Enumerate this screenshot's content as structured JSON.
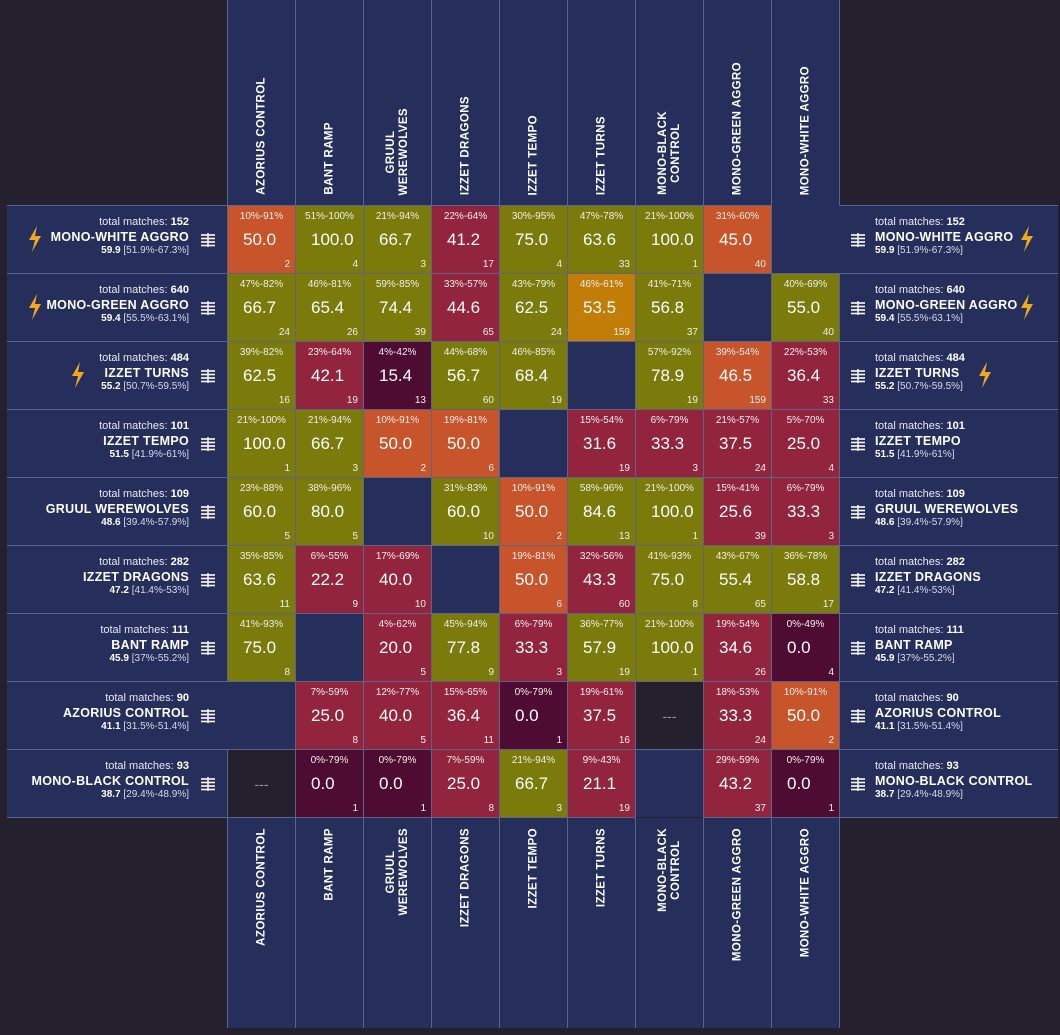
{
  "columns": [
    "AZORIUS CONTROL",
    "BANT RAMP",
    "GRUUL\nWEREWOLVES",
    "IZZET DRAGONS",
    "IZZET TEMPO",
    "IZZET TURNS",
    "MONO-BLACK\nCONTROL",
    "MONO-GREEN AGGRO",
    "MONO-WHITE AGGRO"
  ],
  "colors": {
    "olive": "#7a7b0b",
    "red": "#92253d",
    "orange": "#c7542b",
    "amber": "#c17d06",
    "darkred": "#4f0c33",
    "empty": "#262f5c",
    "na": "#24202e",
    "bolt": "#f0a81c"
  },
  "total_label": "total matches:",
  "rows": [
    {
      "name": "MONO-WHITE AGGRO",
      "total": "152",
      "winrate": "59.9",
      "ci": "[51.9%-67.3%]",
      "bolt": true
    },
    {
      "name": "MONO-GREEN AGGRO",
      "total": "640",
      "winrate": "59.4",
      "ci": "[55.5%-63.1%]",
      "bolt": true
    },
    {
      "name": "IZZET TURNS",
      "total": "484",
      "winrate": "55.2",
      "ci": "[50.7%-59.5%]",
      "bolt": true
    },
    {
      "name": "IZZET TEMPO",
      "total": "101",
      "winrate": "51.5",
      "ci": "[41.9%-61%]",
      "bolt": false
    },
    {
      "name": "GRUUL WEREWOLVES",
      "total": "109",
      "winrate": "48.6",
      "ci": "[39.4%-57.9%]",
      "bolt": false
    },
    {
      "name": "IZZET DRAGONS",
      "total": "282",
      "winrate": "47.2",
      "ci": "[41.4%-53%]",
      "bolt": false
    },
    {
      "name": "BANT RAMP",
      "total": "111",
      "winrate": "45.9",
      "ci": "[37%-55.2%]",
      "bolt": false
    },
    {
      "name": "AZORIUS CONTROL",
      "total": "90",
      "winrate": "41.1",
      "ci": "[31.5%-51.4%]",
      "bolt": false
    },
    {
      "name": "MONO-BLACK CONTROL",
      "total": "93",
      "winrate": "38.7",
      "ci": "[29.4%-48.9%]",
      "bolt": false
    }
  ],
  "chart_data": {
    "type": "heatmap",
    "rows": [
      "MONO-WHITE AGGRO",
      "MONO-GREEN AGGRO",
      "IZZET TURNS",
      "IZZET TEMPO",
      "GRUUL WEREWOLVES",
      "IZZET DRAGONS",
      "BANT RAMP",
      "AZORIUS CONTROL",
      "MONO-BLACK CONTROL"
    ],
    "columns": [
      "AZORIUS CONTROL",
      "BANT RAMP",
      "GRUUL WEREWOLVES",
      "IZZET DRAGONS",
      "IZZET TEMPO",
      "IZZET TURNS",
      "MONO-BLACK CONTROL",
      "MONO-GREEN AGGRO",
      "MONO-WHITE AGGRO"
    ],
    "cells": [
      [
        {
          "wr": "50.0",
          "ci": "10%-91%",
          "n": "2",
          "c": "orange"
        },
        {
          "wr": "100.0",
          "ci": "51%-100%",
          "n": "4",
          "c": "olive"
        },
        {
          "wr": "66.7",
          "ci": "21%-94%",
          "n": "3",
          "c": "olive"
        },
        {
          "wr": "41.2",
          "ci": "22%-64%",
          "n": "17",
          "c": "red"
        },
        {
          "wr": "75.0",
          "ci": "30%-95%",
          "n": "4",
          "c": "olive"
        },
        {
          "wr": "63.6",
          "ci": "47%-78%",
          "n": "33",
          "c": "olive"
        },
        {
          "wr": "100.0",
          "ci": "21%-100%",
          "n": "1",
          "c": "olive"
        },
        {
          "wr": "45.0",
          "ci": "31%-60%",
          "n": "40",
          "c": "orange"
        },
        null
      ],
      [
        {
          "wr": "66.7",
          "ci": "47%-82%",
          "n": "24",
          "c": "olive"
        },
        {
          "wr": "65.4",
          "ci": "46%-81%",
          "n": "26",
          "c": "olive"
        },
        {
          "wr": "74.4",
          "ci": "59%-85%",
          "n": "39",
          "c": "olive"
        },
        {
          "wr": "44.6",
          "ci": "33%-57%",
          "n": "65",
          "c": "red"
        },
        {
          "wr": "62.5",
          "ci": "43%-79%",
          "n": "24",
          "c": "olive"
        },
        {
          "wr": "53.5",
          "ci": "46%-61%",
          "n": "159",
          "c": "amber"
        },
        {
          "wr": "56.8",
          "ci": "41%-71%",
          "n": "37",
          "c": "olive"
        },
        null,
        {
          "wr": "55.0",
          "ci": "40%-69%",
          "n": "40",
          "c": "olive"
        }
      ],
      [
        {
          "wr": "62.5",
          "ci": "39%-82%",
          "n": "16",
          "c": "olive"
        },
        {
          "wr": "42.1",
          "ci": "23%-64%",
          "n": "19",
          "c": "red"
        },
        {
          "wr": "15.4",
          "ci": "4%-42%",
          "n": "13",
          "c": "darkred"
        },
        {
          "wr": "56.7",
          "ci": "44%-68%",
          "n": "60",
          "c": "olive"
        },
        {
          "wr": "68.4",
          "ci": "46%-85%",
          "n": "19",
          "c": "olive"
        },
        null,
        {
          "wr": "78.9",
          "ci": "57%-92%",
          "n": "19",
          "c": "olive"
        },
        {
          "wr": "46.5",
          "ci": "39%-54%",
          "n": "159",
          "c": "orange"
        },
        {
          "wr": "36.4",
          "ci": "22%-53%",
          "n": "33",
          "c": "red"
        }
      ],
      [
        {
          "wr": "100.0",
          "ci": "21%-100%",
          "n": "1",
          "c": "olive"
        },
        {
          "wr": "66.7",
          "ci": "21%-94%",
          "n": "3",
          "c": "olive"
        },
        {
          "wr": "50.0",
          "ci": "10%-91%",
          "n": "2",
          "c": "orange"
        },
        {
          "wr": "50.0",
          "ci": "19%-81%",
          "n": "6",
          "c": "orange"
        },
        null,
        {
          "wr": "31.6",
          "ci": "15%-54%",
          "n": "19",
          "c": "red"
        },
        {
          "wr": "33.3",
          "ci": "6%-79%",
          "n": "3",
          "c": "red"
        },
        {
          "wr": "37.5",
          "ci": "21%-57%",
          "n": "24",
          "c": "red"
        },
        {
          "wr": "25.0",
          "ci": "5%-70%",
          "n": "4",
          "c": "red"
        }
      ],
      [
        {
          "wr": "60.0",
          "ci": "23%-88%",
          "n": "5",
          "c": "olive"
        },
        {
          "wr": "80.0",
          "ci": "38%-96%",
          "n": "5",
          "c": "olive"
        },
        null,
        {
          "wr": "60.0",
          "ci": "31%-83%",
          "n": "10",
          "c": "olive"
        },
        {
          "wr": "50.0",
          "ci": "10%-91%",
          "n": "2",
          "c": "orange"
        },
        {
          "wr": "84.6",
          "ci": "58%-96%",
          "n": "13",
          "c": "olive"
        },
        {
          "wr": "100.0",
          "ci": "21%-100%",
          "n": "1",
          "c": "olive"
        },
        {
          "wr": "25.6",
          "ci": "15%-41%",
          "n": "39",
          "c": "red"
        },
        {
          "wr": "33.3",
          "ci": "6%-79%",
          "n": "3",
          "c": "red"
        }
      ],
      [
        {
          "wr": "63.6",
          "ci": "35%-85%",
          "n": "11",
          "c": "olive"
        },
        {
          "wr": "22.2",
          "ci": "6%-55%",
          "n": "9",
          "c": "red"
        },
        {
          "wr": "40.0",
          "ci": "17%-69%",
          "n": "10",
          "c": "red"
        },
        null,
        {
          "wr": "50.0",
          "ci": "19%-81%",
          "n": "6",
          "c": "orange"
        },
        {
          "wr": "43.3",
          "ci": "32%-56%",
          "n": "60",
          "c": "red"
        },
        {
          "wr": "75.0",
          "ci": "41%-93%",
          "n": "8",
          "c": "olive"
        },
        {
          "wr": "55.4",
          "ci": "43%-67%",
          "n": "65",
          "c": "olive"
        },
        {
          "wr": "58.8",
          "ci": "36%-78%",
          "n": "17",
          "c": "olive"
        }
      ],
      [
        {
          "wr": "75.0",
          "ci": "41%-93%",
          "n": "8",
          "c": "olive"
        },
        null,
        {
          "wr": "20.0",
          "ci": "4%-62%",
          "n": "5",
          "c": "red"
        },
        {
          "wr": "77.8",
          "ci": "45%-94%",
          "n": "9",
          "c": "olive"
        },
        {
          "wr": "33.3",
          "ci": "6%-79%",
          "n": "3",
          "c": "red"
        },
        {
          "wr": "57.9",
          "ci": "36%-77%",
          "n": "19",
          "c": "olive"
        },
        {
          "wr": "100.0",
          "ci": "21%-100%",
          "n": "1",
          "c": "olive"
        },
        {
          "wr": "34.6",
          "ci": "19%-54%",
          "n": "26",
          "c": "red"
        },
        {
          "wr": "0.0",
          "ci": "0%-49%",
          "n": "4",
          "c": "darkred"
        }
      ],
      [
        null,
        {
          "wr": "25.0",
          "ci": "7%-59%",
          "n": "8",
          "c": "red"
        },
        {
          "wr": "40.0",
          "ci": "12%-77%",
          "n": "5",
          "c": "red"
        },
        {
          "wr": "36.4",
          "ci": "15%-65%",
          "n": "11",
          "c": "red"
        },
        {
          "wr": "0.0",
          "ci": "0%-79%",
          "n": "1",
          "c": "darkred"
        },
        {
          "wr": "37.5",
          "ci": "19%-61%",
          "n": "16",
          "c": "red"
        },
        {
          "na": "---"
        },
        {
          "wr": "33.3",
          "ci": "18%-53%",
          "n": "24",
          "c": "red"
        },
        {
          "wr": "50.0",
          "ci": "10%-91%",
          "n": "2",
          "c": "orange"
        }
      ],
      [
        {
          "na": "---"
        },
        {
          "wr": "0.0",
          "ci": "0%-79%",
          "n": "1",
          "c": "darkred"
        },
        {
          "wr": "0.0",
          "ci": "0%-79%",
          "n": "1",
          "c": "darkred"
        },
        {
          "wr": "25.0",
          "ci": "7%-59%",
          "n": "8",
          "c": "red"
        },
        {
          "wr": "66.7",
          "ci": "21%-94%",
          "n": "3",
          "c": "olive"
        },
        {
          "wr": "21.1",
          "ci": "9%-43%",
          "n": "19",
          "c": "red"
        },
        null,
        {
          "wr": "43.2",
          "ci": "29%-59%",
          "n": "37",
          "c": "red"
        },
        {
          "wr": "0.0",
          "ci": "0%-79%",
          "n": "1",
          "c": "darkred"
        }
      ]
    ]
  }
}
